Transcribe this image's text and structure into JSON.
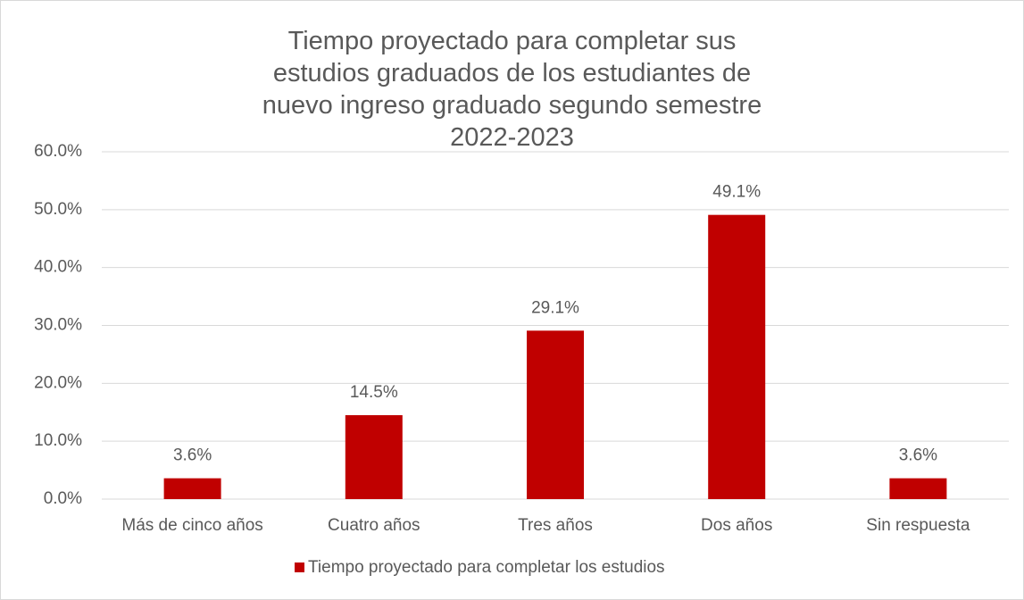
{
  "chart_data": {
    "type": "bar",
    "title": "Tiempo proyectado para completar sus estudios graduados de los estudiantes de nuevo ingreso graduado segundo semestre 2022-2023",
    "categories": [
      "Más de cinco años",
      "Cuatro años",
      "Tres años",
      "Dos años",
      "Sin respuesta"
    ],
    "series": [
      {
        "name": "Tiempo proyectado para completar los estudios",
        "color": "#c00000",
        "values": [
          3.6,
          14.5,
          29.1,
          49.1,
          3.6
        ],
        "value_labels": [
          "3.6%",
          "14.5%",
          "29.1%",
          "49.1%",
          "3.6%"
        ]
      }
    ],
    "ylim": [
      0,
      60
    ],
    "yticks": [
      {
        "value": 0,
        "label": "0.0%"
      },
      {
        "value": 10,
        "label": "10.0%"
      },
      {
        "value": 20,
        "label": "20.0%"
      },
      {
        "value": 30,
        "label": "30.0%"
      },
      {
        "value": 40,
        "label": "40.0%"
      },
      {
        "value": 50,
        "label": "50.0%"
      },
      {
        "value": 60,
        "label": "60.0%"
      }
    ],
    "grid": true,
    "legend": "bottom"
  }
}
